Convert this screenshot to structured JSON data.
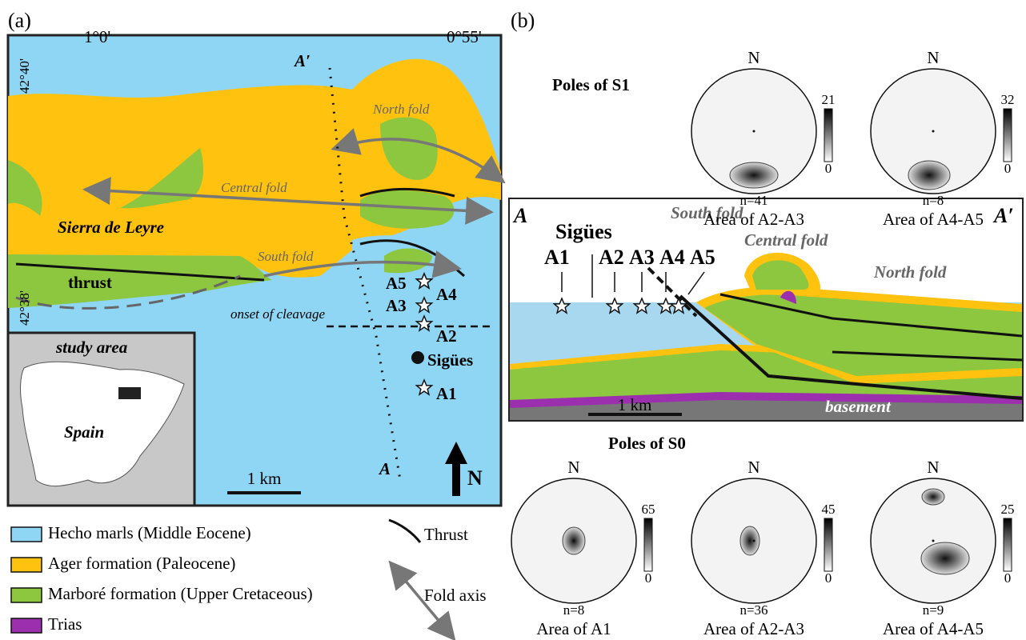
{
  "panel_a": {
    "label": "(a)",
    "coords": {
      "lon_west": "1°0'",
      "lon_east": "0°55'",
      "lat_north": "42°40'",
      "lat_south": "42°38'"
    },
    "section_ends": {
      "north": "A′",
      "south": "A"
    },
    "folds": {
      "north": "North fold",
      "central": "Central fold",
      "south": "South fold"
    },
    "place": "Sierra de Leyre",
    "thrust": "thrust",
    "onset": "onset of cleavage",
    "sites": {
      "a5": "A5",
      "a4": "A4",
      "a3": "A3",
      "a2": "A2",
      "a1": "A1"
    },
    "village": "Sigües",
    "scale": "1 km",
    "north": "N",
    "inset": {
      "study_area": "study area",
      "country": "Spain"
    }
  },
  "legend": {
    "items": [
      {
        "label": "Hecho marls (Middle Eocene)",
        "color": "#8fd6f4"
      },
      {
        "label": "Ager formation (Paleocene)",
        "color": "#ffc20e"
      },
      {
        "label": "Marboré formation (Upper Cretaceous)",
        "color": "#8dc63f"
      },
      {
        "label": "Trias",
        "color": "#9b2fae"
      }
    ],
    "thrust": "Thrust",
    "fold_axis": "Fold axis"
  },
  "panel_b": {
    "label": "(b)",
    "north": "N",
    "s1": {
      "title": "Poles of S1",
      "nets": [
        {
          "n": "n=41",
          "max": "21",
          "min": "0",
          "area": "Area of A2-A3"
        },
        {
          "n": "n=8",
          "max": "32",
          "min": "0",
          "area": "Area of A4-A5"
        }
      ]
    },
    "section": {
      "start": "A",
      "end": "A′",
      "south_fold": "South fold",
      "central_fold": "Central fold",
      "north_fold": "North fold",
      "village": "Sigües",
      "sites": [
        "A1",
        "A2",
        "A3",
        "A4",
        "A5"
      ],
      "scale": "1 km",
      "basement": "basement"
    },
    "s0": {
      "title": "Poles of S0",
      "nets": [
        {
          "n": "n=8",
          "max": "65",
          "min": "0",
          "area": "Area of A1"
        },
        {
          "n": "n=36",
          "max": "45",
          "min": "0",
          "area": "Area of A2-A3"
        },
        {
          "n": "n=9",
          "max": "25",
          "min": "0",
          "area": "Area of A4-A5"
        }
      ]
    }
  }
}
